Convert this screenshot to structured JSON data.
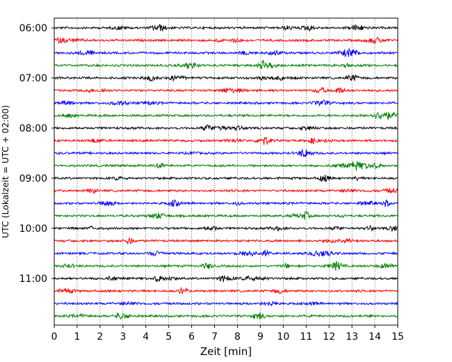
{
  "chart_data": {
    "type": "line",
    "title": "",
    "xlabel": "Zeit  [min]",
    "ylabel": "UTC (Lokalzeit = UTC + 02:00)",
    "xlim": [
      0,
      15
    ],
    "x_ticks": [
      0,
      1,
      2,
      3,
      4,
      5,
      6,
      7,
      8,
      9,
      10,
      11,
      12,
      13,
      14,
      15
    ],
    "x_tick_labels": [
      "0",
      "1",
      "2",
      "3",
      "4",
      "5",
      "6",
      "7",
      "8",
      "9",
      "10",
      "11",
      "12",
      "13",
      "14",
      "15"
    ],
    "vertical_gridlines": "dotted",
    "y_tick_labels": [
      "06:00",
      "07:00",
      "08:00",
      "09:00",
      "10:00",
      "11:00"
    ],
    "color_cycle": [
      "#000000",
      "#ff0000",
      "#0000ff",
      "#007f00"
    ],
    "traces": [
      {
        "start": "06:00",
        "color": "#000000"
      },
      {
        "start": "06:15",
        "color": "#ff0000"
      },
      {
        "start": "06:30",
        "color": "#0000ff"
      },
      {
        "start": "06:45",
        "color": "#007f00"
      },
      {
        "start": "07:00",
        "color": "#000000"
      },
      {
        "start": "07:15",
        "color": "#ff0000"
      },
      {
        "start": "07:30",
        "color": "#0000ff"
      },
      {
        "start": "07:45",
        "color": "#007f00"
      },
      {
        "start": "08:00",
        "color": "#000000"
      },
      {
        "start": "08:15",
        "color": "#ff0000"
      },
      {
        "start": "08:30",
        "color": "#0000ff"
      },
      {
        "start": "08:45",
        "color": "#007f00"
      },
      {
        "start": "09:00",
        "color": "#000000"
      },
      {
        "start": "09:15",
        "color": "#ff0000"
      },
      {
        "start": "09:30",
        "color": "#0000ff"
      },
      {
        "start": "09:45",
        "color": "#007f00"
      },
      {
        "start": "10:00",
        "color": "#000000"
      },
      {
        "start": "10:15",
        "color": "#ff0000"
      },
      {
        "start": "10:30",
        "color": "#0000ff"
      },
      {
        "start": "10:45",
        "color": "#007f00"
      },
      {
        "start": "11:00",
        "color": "#000000"
      },
      {
        "start": "11:15",
        "color": "#ff0000"
      },
      {
        "start": "11:30",
        "color": "#0000ff"
      },
      {
        "start": "11:45",
        "color": "#007f00"
      }
    ]
  }
}
